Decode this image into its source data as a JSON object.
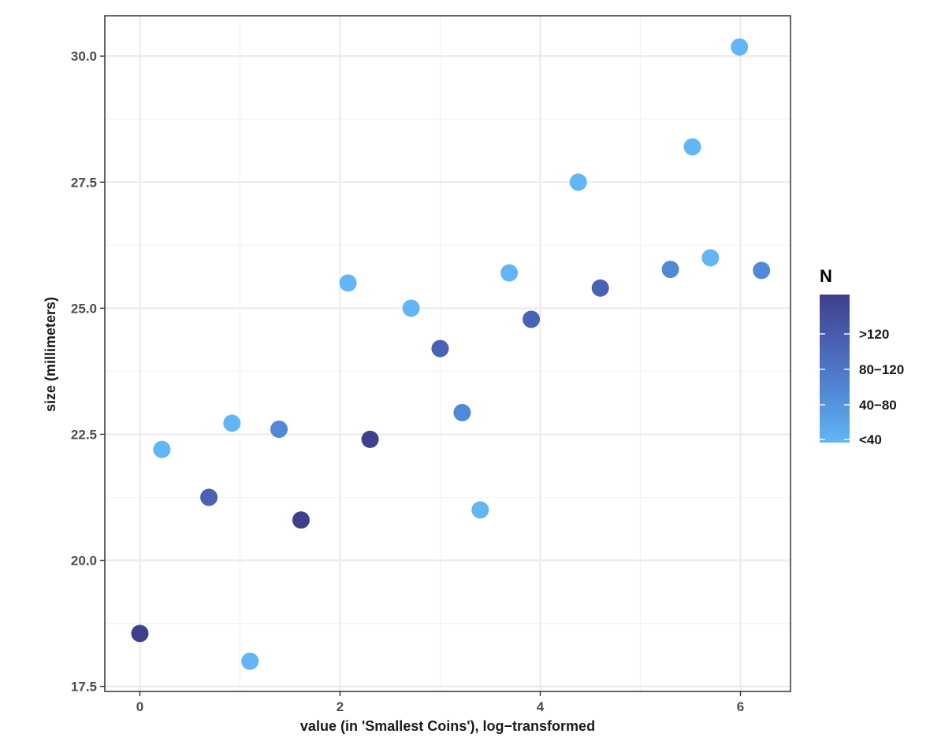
{
  "chart_data": {
    "type": "scatter",
    "title": "",
    "xlabel": "value (in 'Smallest Coins'), log−transformed",
    "ylabel": "size (millimeters)",
    "xlim": [
      -0.35,
      6.5
    ],
    "ylim": [
      17.4,
      30.8
    ],
    "x_ticks": [
      0,
      2,
      4,
      6
    ],
    "x_tick_labels": [
      "0",
      "2",
      "4",
      "6"
    ],
    "y_ticks": [
      17.5,
      20.0,
      22.5,
      25.0,
      27.5,
      30.0
    ],
    "y_tick_labels": [
      "17.5",
      "20.0",
      "22.5",
      "25.0",
      "27.5",
      "30.0"
    ],
    "grid": true,
    "legend": {
      "title": "N",
      "placement": "right",
      "type": "colorbar",
      "labels": [
        ">120",
        "80−120",
        "40−80",
        "<40"
      ],
      "colors": [
        "#3f3f8c",
        "#4a62b3",
        "#5189d6",
        "#62b6f5"
      ]
    },
    "colors": {
      "gt120": "#3f3f8c",
      "80_120": "#4a62b3",
      "40_80": "#5189d6",
      "lt40": "#62b6f5"
    },
    "points": [
      {
        "x": 0.0,
        "y": 18.55,
        "n": ">120"
      },
      {
        "x": 0.22,
        "y": 22.2,
        "n": "<40"
      },
      {
        "x": 0.69,
        "y": 21.25,
        "n": "80−120"
      },
      {
        "x": 0.92,
        "y": 22.72,
        "n": "<40"
      },
      {
        "x": 1.1,
        "y": 18.0,
        "n": "<40"
      },
      {
        "x": 1.39,
        "y": 22.6,
        "n": "40−80"
      },
      {
        "x": 1.61,
        "y": 20.8,
        "n": ">120"
      },
      {
        "x": 2.08,
        "y": 25.5,
        "n": "<40"
      },
      {
        "x": 2.3,
        "y": 22.4,
        "n": ">120"
      },
      {
        "x": 2.71,
        "y": 25.0,
        "n": "<40"
      },
      {
        "x": 3.0,
        "y": 24.2,
        "n": "80−120"
      },
      {
        "x": 3.22,
        "y": 22.93,
        "n": "40−80"
      },
      {
        "x": 3.4,
        "y": 21.0,
        "n": "<40"
      },
      {
        "x": 3.69,
        "y": 25.7,
        "n": "<40"
      },
      {
        "x": 3.91,
        "y": 24.78,
        "n": "80−120"
      },
      {
        "x": 4.38,
        "y": 27.5,
        "n": "<40"
      },
      {
        "x": 4.6,
        "y": 25.4,
        "n": "80−120"
      },
      {
        "x": 5.3,
        "y": 25.77,
        "n": "40−80"
      },
      {
        "x": 5.52,
        "y": 28.2,
        "n": "<40"
      },
      {
        "x": 5.7,
        "y": 26.0,
        "n": "<40"
      },
      {
        "x": 5.99,
        "y": 30.18,
        "n": "<40"
      },
      {
        "x": 6.21,
        "y": 25.75,
        "n": "40−80"
      }
    ]
  }
}
